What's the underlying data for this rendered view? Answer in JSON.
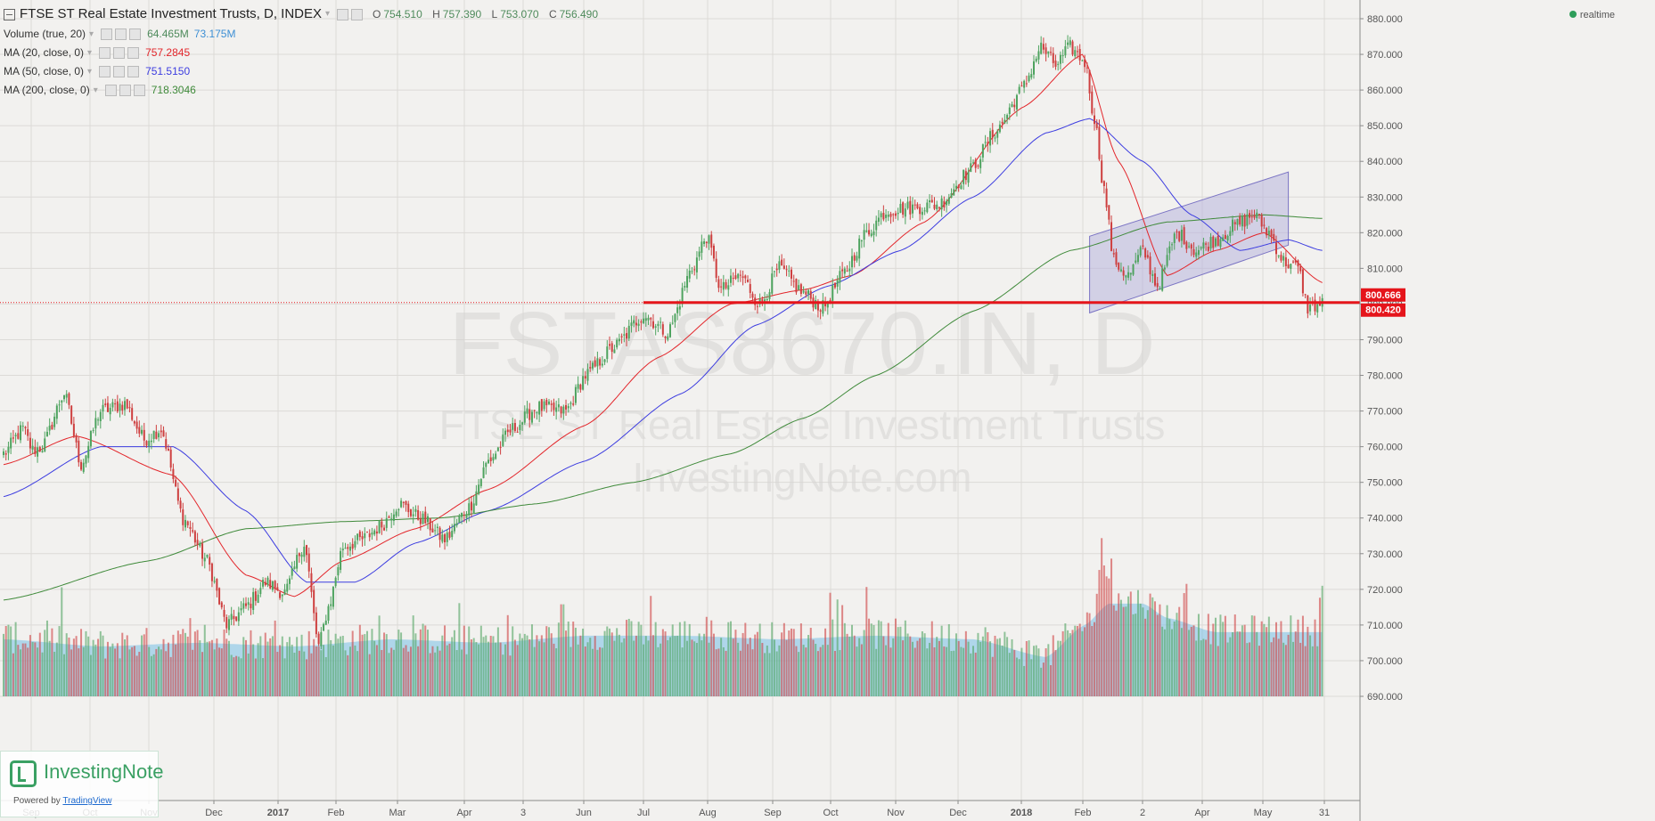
{
  "header": {
    "title": "FTSE ST Real Estate Investment Trusts, D, INDEX",
    "ohlc": [
      {
        "k": "O",
        "v": "754.510"
      },
      {
        "k": "H",
        "v": "757.390"
      },
      {
        "k": "L",
        "v": "753.070"
      },
      {
        "k": "C",
        "v": "756.490"
      }
    ],
    "realtime": "realtime"
  },
  "indicators": [
    {
      "label": "Volume (true, 20)",
      "values": [
        "64.465M",
        "73.175M"
      ],
      "colors": [
        "#4e8a5b",
        "#3d8fd4"
      ]
    },
    {
      "label": "MA (20, close, 0)",
      "values": [
        "757.2845"
      ],
      "colors": [
        "#e3262b"
      ]
    },
    {
      "label": "MA (50, close, 0)",
      "values": [
        "751.5150"
      ],
      "colors": [
        "#3d3de0"
      ]
    },
    {
      "label": "MA (200, close, 0)",
      "values": [
        "718.3046"
      ],
      "colors": [
        "#3f8a3a"
      ]
    }
  ],
  "watermark": {
    "symbol": "FSTAS8670.IN, D",
    "name": "FTSE ST Real Estate Investment Trusts",
    "site": "InvestingNote.com"
  },
  "logo": {
    "name": "InvestingNote",
    "powered_prefix": "Powered by",
    "powered_link": "TradingView"
  },
  "chart_data": {
    "type": "candlestick",
    "x_ticks": [
      "Sep",
      "Oct",
      "Nov",
      "Dec",
      "2017",
      "Feb",
      "Mar",
      "Apr",
      "3",
      "Jun",
      "Jul",
      "Aug",
      "Sep",
      "Oct",
      "Nov",
      "Dec",
      "2018",
      "Feb",
      "2",
      "Apr",
      "May",
      "31"
    ],
    "y_ticks": [
      880,
      870,
      860,
      850,
      840,
      830,
      820,
      810,
      800,
      790,
      780,
      770,
      760,
      750,
      740,
      730,
      720,
      710,
      700,
      690
    ],
    "y_tick_labels": [
      "880.000",
      "870.000",
      "860.000",
      "850.000",
      "840.000",
      "830.000",
      "820.000",
      "810.000",
      "800.000",
      "790.000",
      "780.000",
      "770.000",
      "760.000",
      "750.000",
      "740.000",
      "730.000",
      "720.000",
      "710.000",
      "700.000",
      "690.000"
    ],
    "ylim": [
      688,
      884
    ],
    "price_close_anchors": [
      [
        0,
        758
      ],
      [
        8,
        765
      ],
      [
        12,
        759
      ],
      [
        16,
        760
      ],
      [
        25,
        775
      ],
      [
        32,
        755
      ],
      [
        40,
        770
      ],
      [
        50,
        772
      ],
      [
        58,
        762
      ],
      [
        65,
        765
      ],
      [
        74,
        740
      ],
      [
        84,
        728
      ],
      [
        92,
        710
      ],
      [
        100,
        715
      ],
      [
        108,
        722
      ],
      [
        116,
        719
      ],
      [
        124,
        733
      ],
      [
        130,
        704
      ],
      [
        134,
        715
      ],
      [
        140,
        732
      ],
      [
        148,
        734
      ],
      [
        156,
        738
      ],
      [
        163,
        744
      ],
      [
        172,
        740
      ],
      [
        182,
        734
      ],
      [
        192,
        743
      ],
      [
        200,
        756
      ],
      [
        210,
        765
      ],
      [
        220,
        771
      ],
      [
        232,
        770
      ],
      [
        240,
        780
      ],
      [
        252,
        788
      ],
      [
        264,
        797
      ],
      [
        274,
        792
      ],
      [
        284,
        810
      ],
      [
        290,
        819
      ],
      [
        296,
        804
      ],
      [
        304,
        808
      ],
      [
        312,
        800
      ],
      [
        320,
        810
      ],
      [
        330,
        803
      ],
      [
        338,
        799
      ],
      [
        346,
        808
      ],
      [
        356,
        820
      ],
      [
        364,
        826
      ],
      [
        374,
        827
      ],
      [
        386,
        828
      ],
      [
        398,
        837
      ],
      [
        410,
        849
      ],
      [
        420,
        860
      ],
      [
        428,
        872
      ],
      [
        434,
        867
      ],
      [
        440,
        872
      ],
      [
        446,
        868
      ],
      [
        450,
        852
      ],
      [
        454,
        832
      ],
      [
        458,
        812
      ],
      [
        464,
        808
      ],
      [
        470,
        815
      ],
      [
        476,
        805
      ],
      [
        484,
        820
      ],
      [
        492,
        815
      ],
      [
        500,
        818
      ],
      [
        508,
        822
      ],
      [
        516,
        825
      ],
      [
        522,
        820
      ],
      [
        528,
        812
      ],
      [
        534,
        810
      ],
      [
        538,
        799
      ],
      [
        544,
        800
      ]
    ],
    "ma_reading_points": [
      {
        "name": "MA 20",
        "points": [
          [
            0,
            755
          ],
          [
            30,
            763
          ],
          [
            70,
            752
          ],
          [
            100,
            724
          ],
          [
            120,
            718
          ],
          [
            140,
            728
          ],
          [
            170,
            737
          ],
          [
            200,
            748
          ],
          [
            240,
            766
          ],
          [
            270,
            785
          ],
          [
            300,
            800
          ],
          [
            330,
            804
          ],
          [
            350,
            808
          ],
          [
            380,
            823
          ],
          [
            420,
            855
          ],
          [
            445,
            870
          ],
          [
            460,
            840
          ],
          [
            480,
            808
          ],
          [
            500,
            815
          ],
          [
            520,
            820
          ],
          [
            544,
            806
          ]
        ]
      },
      {
        "name": "MA 50",
        "points": [
          [
            0,
            746
          ],
          [
            40,
            760
          ],
          [
            70,
            760
          ],
          [
            100,
            742
          ],
          [
            125,
            722
          ],
          [
            145,
            722
          ],
          [
            170,
            733
          ],
          [
            200,
            742
          ],
          [
            240,
            756
          ],
          [
            280,
            775
          ],
          [
            310,
            794
          ],
          [
            340,
            805
          ],
          [
            370,
            815
          ],
          [
            400,
            830
          ],
          [
            430,
            848
          ],
          [
            448,
            852
          ],
          [
            470,
            840
          ],
          [
            490,
            825
          ],
          [
            510,
            815
          ],
          [
            530,
            818
          ],
          [
            544,
            815
          ]
        ]
      },
      {
        "name": "MA 200",
        "points": [
          [
            0,
            717
          ],
          [
            60,
            728
          ],
          [
            100,
            737
          ],
          [
            140,
            739
          ],
          [
            180,
            740
          ],
          [
            220,
            744
          ],
          [
            260,
            750
          ],
          [
            300,
            758
          ],
          [
            330,
            768
          ],
          [
            360,
            780
          ],
          [
            400,
            798
          ],
          [
            440,
            815
          ],
          [
            480,
            823
          ],
          [
            520,
            825
          ],
          [
            544,
            824
          ]
        ]
      }
    ],
    "volume_reading_points": [
      [
        0,
        706
      ],
      [
        40,
        704
      ],
      [
        80,
        705
      ],
      [
        120,
        704
      ],
      [
        160,
        706
      ],
      [
        200,
        705
      ],
      [
        240,
        707
      ],
      [
        280,
        707
      ],
      [
        320,
        706
      ],
      [
        360,
        707
      ],
      [
        400,
        706
      ],
      [
        430,
        701
      ],
      [
        446,
        710
      ],
      [
        456,
        716
      ],
      [
        470,
        716
      ],
      [
        480,
        712
      ],
      [
        500,
        708
      ],
      [
        544,
        708
      ]
    ],
    "channel": {
      "upper": [
        [
          448,
          819
        ],
        [
          530,
          837
        ]
      ],
      "lower": [
        [
          448,
          797.5
        ],
        [
          530,
          816.5
        ]
      ]
    },
    "support_level": 800.42,
    "labels": [
      {
        "value": "800.666",
        "y": 800.666
      },
      {
        "value": "800.420",
        "y": 800.42
      }
    ],
    "colors": {
      "up": "#4ea35f",
      "down": "#ce3f3f",
      "ma20": "#e3262b",
      "ma50": "#3d3de0",
      "ma200": "#3f8a3a",
      "volume_ma": "#79bfe6",
      "channel": "#b8b4dc",
      "support": "#e5151b"
    }
  }
}
